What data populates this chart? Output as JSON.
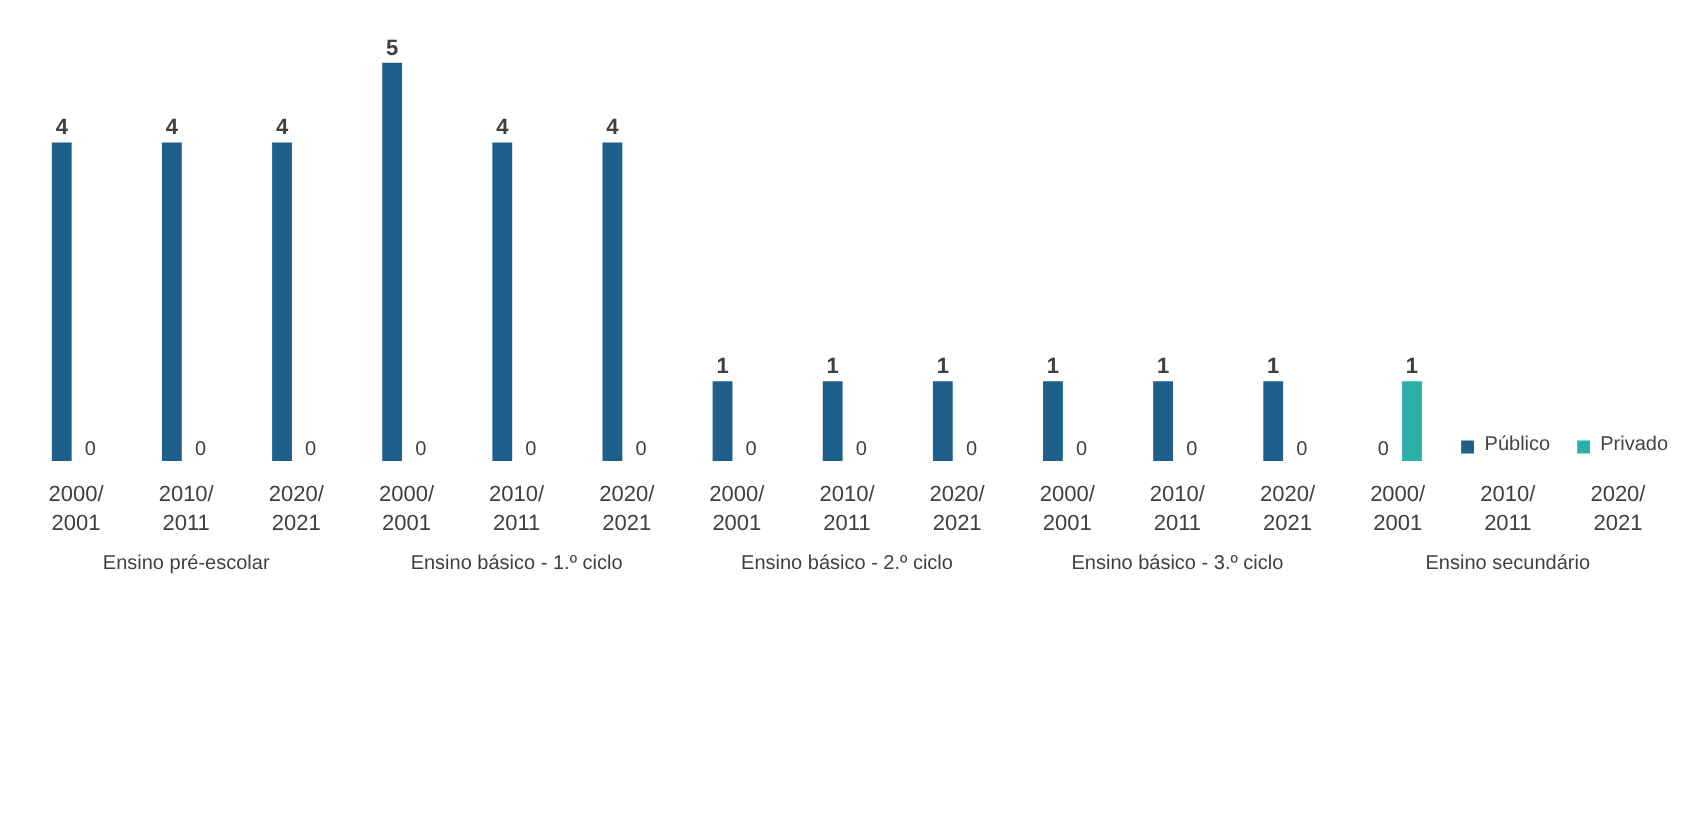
{
  "chart_data": {
    "type": "bar",
    "categories": [
      "2000/ 2001",
      "2010/ 2011",
      "2020/ 2021",
      "2000/ 2001",
      "2010/ 2011",
      "2020/ 2021",
      "2000/ 2001",
      "2010/ 2011",
      "2020/ 2021",
      "2000/ 2001",
      "2010/ 2011",
      "2020/ 2021",
      "2000/ 2001",
      "2010/ 2011",
      "2020/ 2021"
    ],
    "series": [
      {
        "name": "Público",
        "color": "#1f5f8b",
        "values": [
          4,
          4,
          4,
          5,
          4,
          4,
          1,
          1,
          1,
          1,
          1,
          1,
          0,
          null,
          null
        ]
      },
      {
        "name": "Privado",
        "color": "#2ab0a8",
        "values": [
          0,
          0,
          0,
          0,
          0,
          0,
          0,
          0,
          0,
          0,
          0,
          0,
          1,
          null,
          null
        ]
      }
    ],
    "annotations": [
      "Ensino pré-escolar",
      "Ensino básico - 1.º ciclo",
      "Ensino básico - 2.º ciclo",
      "Ensino básico - 3.º ciclo",
      "Ensino secundário"
    ],
    "data_labels": true,
    "legend": "bottom right"
  }
}
